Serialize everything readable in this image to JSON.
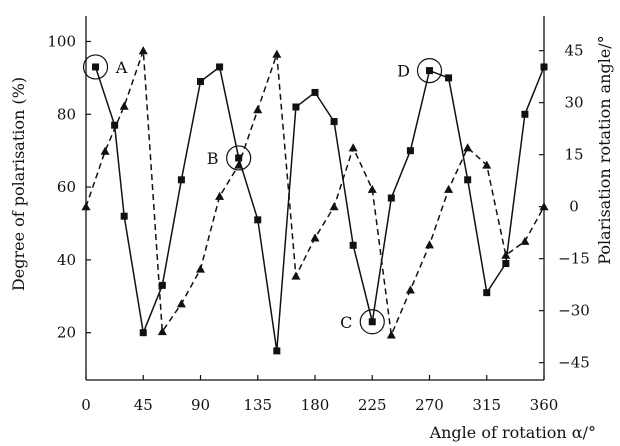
{
  "chart_data": {
    "type": "line",
    "title": "",
    "xlabel": "Angle of rotation α/°",
    "ylabel_left": "Degree of polarisation (%)",
    "ylabel_right": "Polarisation rotation angle/°",
    "xlim": [
      0,
      360
    ],
    "ylim_left": [
      7,
      107
    ],
    "ylim_right": [
      -50,
      55
    ],
    "x_ticks": [
      0,
      45,
      90,
      135,
      180,
      225,
      270,
      315,
      360
    ],
    "y_ticks_left": [
      20,
      40,
      60,
      80,
      100
    ],
    "y_ticks_right": [
      -45,
      -30,
      -15,
      0,
      15,
      30,
      45
    ],
    "grid": false,
    "legend": "none",
    "series": [
      {
        "axis": "left",
        "marker": "square",
        "line_style": "solid",
        "color": "#111111",
        "x": [
          7.5,
          22.5,
          30,
          45,
          60,
          75,
          90,
          105,
          120,
          135,
          150,
          165,
          180,
          195,
          210,
          225,
          240,
          255,
          270,
          285,
          300,
          315,
          330,
          345,
          360
        ],
        "y": [
          93,
          77,
          52,
          20,
          33,
          62,
          89,
          93,
          68,
          51,
          15,
          82,
          86,
          78,
          44,
          23,
          57,
          70,
          92,
          90,
          62,
          31,
          39,
          80,
          93
        ]
      },
      {
        "axis": "right",
        "marker": "triangle",
        "line_style": "dashed",
        "color": "#111111",
        "x": [
          0,
          15,
          30,
          45,
          60,
          75,
          90,
          105,
          120,
          135,
          150,
          165,
          180,
          195,
          210,
          225,
          240,
          255,
          270,
          285,
          300,
          315,
          330,
          345,
          360
        ],
        "y": [
          0,
          16,
          29,
          45,
          -36,
          -28,
          -18,
          3,
          12,
          28,
          44,
          -20,
          -9,
          0,
          17,
          5,
          -37,
          -24,
          -11,
          5,
          17,
          12,
          -14,
          -10,
          0
        ]
      }
    ],
    "annotations": [
      {
        "label": "A",
        "x": 7.5,
        "y": 93,
        "axis": "left",
        "label_side": "right"
      },
      {
        "label": "B",
        "x": 120,
        "y": 68,
        "axis": "left",
        "label_side": "left"
      },
      {
        "label": "C",
        "x": 225,
        "y": 23,
        "axis": "left",
        "label_side": "left"
      },
      {
        "label": "D",
        "x": 270,
        "y": 92,
        "axis": "left",
        "label_side": "left"
      }
    ]
  }
}
